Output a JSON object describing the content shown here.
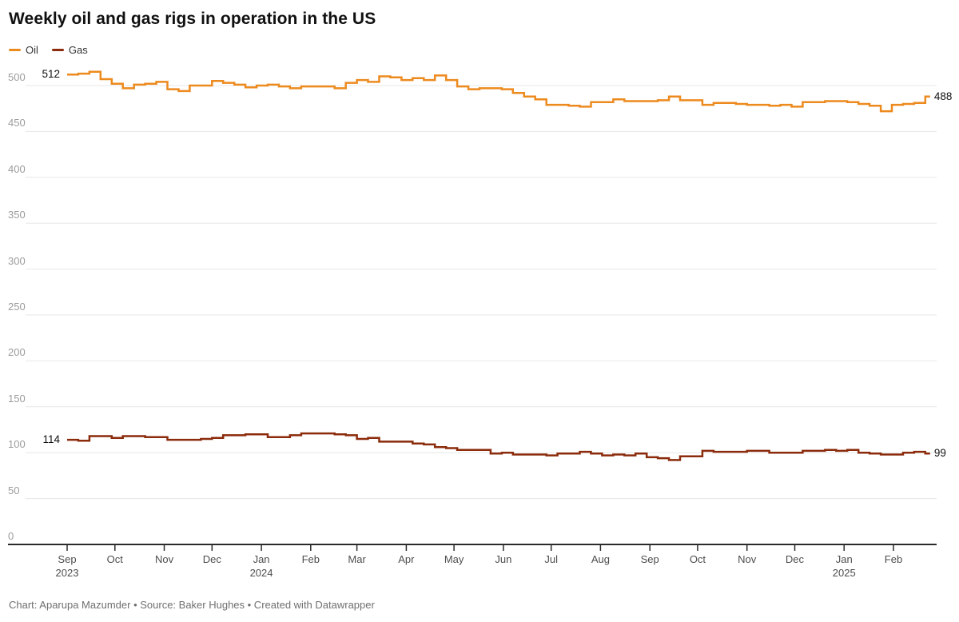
{
  "title": "Weekly oil and gas rigs in operation in the US",
  "legend": [
    {
      "label": "Oil",
      "color": "#ED8A1E"
    },
    {
      "label": "Gas",
      "color": "#8B2B0B"
    }
  ],
  "footer": "Chart: Aparupa Mazumder • Source: Baker Hughes • Created with Datawrapper",
  "colors": {
    "grid": "#e7e7e7",
    "axis": "#2b2b2b",
    "tick_label": "#4d4d4d",
    "y_label": "#9c9c9c",
    "annotation": "#111111"
  },
  "chart_data": {
    "type": "line",
    "step": true,
    "title": "Weekly oil and gas rigs in operation in the US",
    "xlabel": "",
    "ylabel": "",
    "ylim": [
      0,
      530
    ],
    "grid": "horizontal",
    "legend_position": "top-left",
    "y_ticks": [
      0,
      50,
      100,
      150,
      200,
      250,
      300,
      350,
      400,
      450,
      500
    ],
    "x_ticks": [
      {
        "label": "Sep",
        "year": "2023",
        "date": "2023-09-01"
      },
      {
        "label": "Oct",
        "date": "2023-10-01"
      },
      {
        "label": "Nov",
        "date": "2023-11-01"
      },
      {
        "label": "Dec",
        "date": "2023-12-01"
      },
      {
        "label": "Jan",
        "year": "2024",
        "date": "2024-01-01"
      },
      {
        "label": "Feb",
        "date": "2024-02-01"
      },
      {
        "label": "Mar",
        "date": "2024-03-01"
      },
      {
        "label": "Apr",
        "date": "2024-04-01"
      },
      {
        "label": "May",
        "date": "2024-05-01"
      },
      {
        "label": "Jun",
        "date": "2024-06-01"
      },
      {
        "label": "Jul",
        "date": "2024-07-01"
      },
      {
        "label": "Aug",
        "date": "2024-08-01"
      },
      {
        "label": "Sep",
        "date": "2024-09-01"
      },
      {
        "label": "Oct",
        "date": "2024-10-01"
      },
      {
        "label": "Nov",
        "date": "2024-11-01"
      },
      {
        "label": "Dec",
        "date": "2024-12-01"
      },
      {
        "label": "Jan",
        "year": "2025",
        "date": "2025-01-01"
      },
      {
        "label": "Feb",
        "date": "2025-02-01"
      }
    ],
    "week_start_date": "2023-09-01",
    "week_interval_days": 7,
    "series": [
      {
        "name": "Oil",
        "color": "#ED8A1E",
        "start_label": "512",
        "end_label": "488",
        "values": [
          512,
          513,
          515,
          507,
          502,
          497,
          501,
          502,
          504,
          496,
          494,
          500,
          500,
          505,
          503,
          501,
          498,
          500,
          501,
          499,
          497,
          499,
          499,
          499,
          497,
          503,
          506,
          504,
          510,
          509,
          506,
          508,
          506,
          511,
          506,
          499,
          496,
          497,
          497,
          496,
          492,
          488,
          485,
          479,
          479,
          478,
          477,
          482,
          482,
          485,
          483,
          483,
          483,
          484,
          488,
          484,
          484,
          479,
          481,
          481,
          480,
          479,
          479,
          478,
          479,
          477,
          482,
          482,
          483,
          483,
          482,
          480,
          478,
          472,
          479,
          480,
          481,
          488
        ]
      },
      {
        "name": "Gas",
        "color": "#8B2B0B",
        "start_label": "114",
        "end_label": "99",
        "values": [
          114,
          113,
          118,
          118,
          116,
          118,
          118,
          117,
          117,
          114,
          114,
          114,
          115,
          116,
          119,
          119,
          120,
          120,
          117,
          117,
          119,
          121,
          121,
          121,
          120,
          119,
          115,
          116,
          112,
          112,
          112,
          110,
          109,
          106,
          105,
          103,
          103,
          103,
          99,
          100,
          98,
          98,
          98,
          97,
          99,
          99,
          101,
          99,
          97,
          98,
          97,
          99,
          95,
          94,
          92,
          96,
          96,
          102,
          101,
          101,
          101,
          102,
          102,
          100,
          100,
          100,
          102,
          102,
          103,
          102,
          103,
          100,
          99,
          98,
          98,
          100,
          101,
          99
        ]
      }
    ]
  }
}
